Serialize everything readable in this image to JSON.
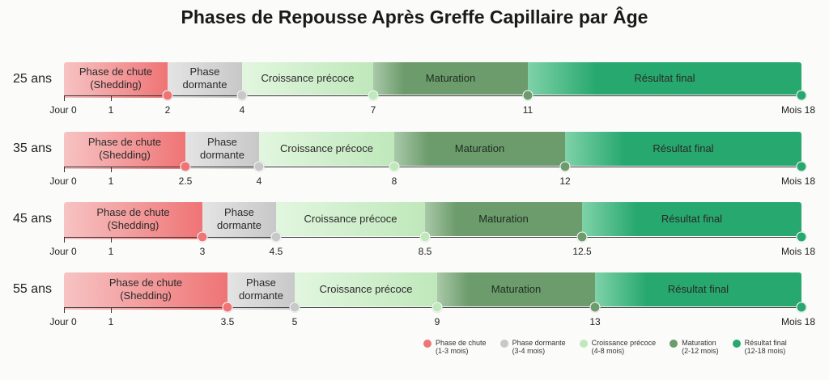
{
  "title": "Phases de Repousse Après Greffe Capillaire par Âge",
  "colors": {
    "shedding": "#ef7475",
    "dormant": "#c8c8c8",
    "early": "#bfe8bb",
    "maturation": "#6c9b6c",
    "final": "#27a86e"
  },
  "phase_labels": [
    "Phase de chute\n(Shedding)",
    "Phase\ndormante",
    "Croissance précoce",
    "Maturation",
    "Résultat final"
  ],
  "rows": [
    {
      "age": "25 ans",
      "ticks": [
        "Jour 0",
        "1",
        "2",
        "4",
        "7",
        "11",
        "Mois 18"
      ]
    },
    {
      "age": "35 ans",
      "ticks": [
        "Jour 0",
        "1",
        "2.5",
        "4",
        "8",
        "12",
        "Mois 18"
      ]
    },
    {
      "age": "45 ans",
      "ticks": [
        "Jour 0",
        "1",
        "3",
        "4.5",
        "8.5",
        "12.5",
        "Mois 18"
      ]
    },
    {
      "age": "55 ans",
      "ticks": [
        "Jour 0",
        "1",
        "3.5",
        "5",
        "9",
        "13",
        "Mois 18"
      ]
    }
  ],
  "legend": [
    {
      "label": "Phase de chute",
      "range": "(1-3 mois)",
      "color": "#ef7475"
    },
    {
      "label": "Phase dormante",
      "range": "(3-4 mois)",
      "color": "#c8c8c8"
    },
    {
      "label": "Croissance précoce",
      "range": "(4-8 mois)",
      "color": "#bfe8bb"
    },
    {
      "label": "Maturation",
      "range": "(2-12 mois)",
      "color": "#6c9b6c"
    },
    {
      "label": "Résultat final",
      "range": "(12-18 mois)",
      "color": "#27a86e"
    }
  ]
}
